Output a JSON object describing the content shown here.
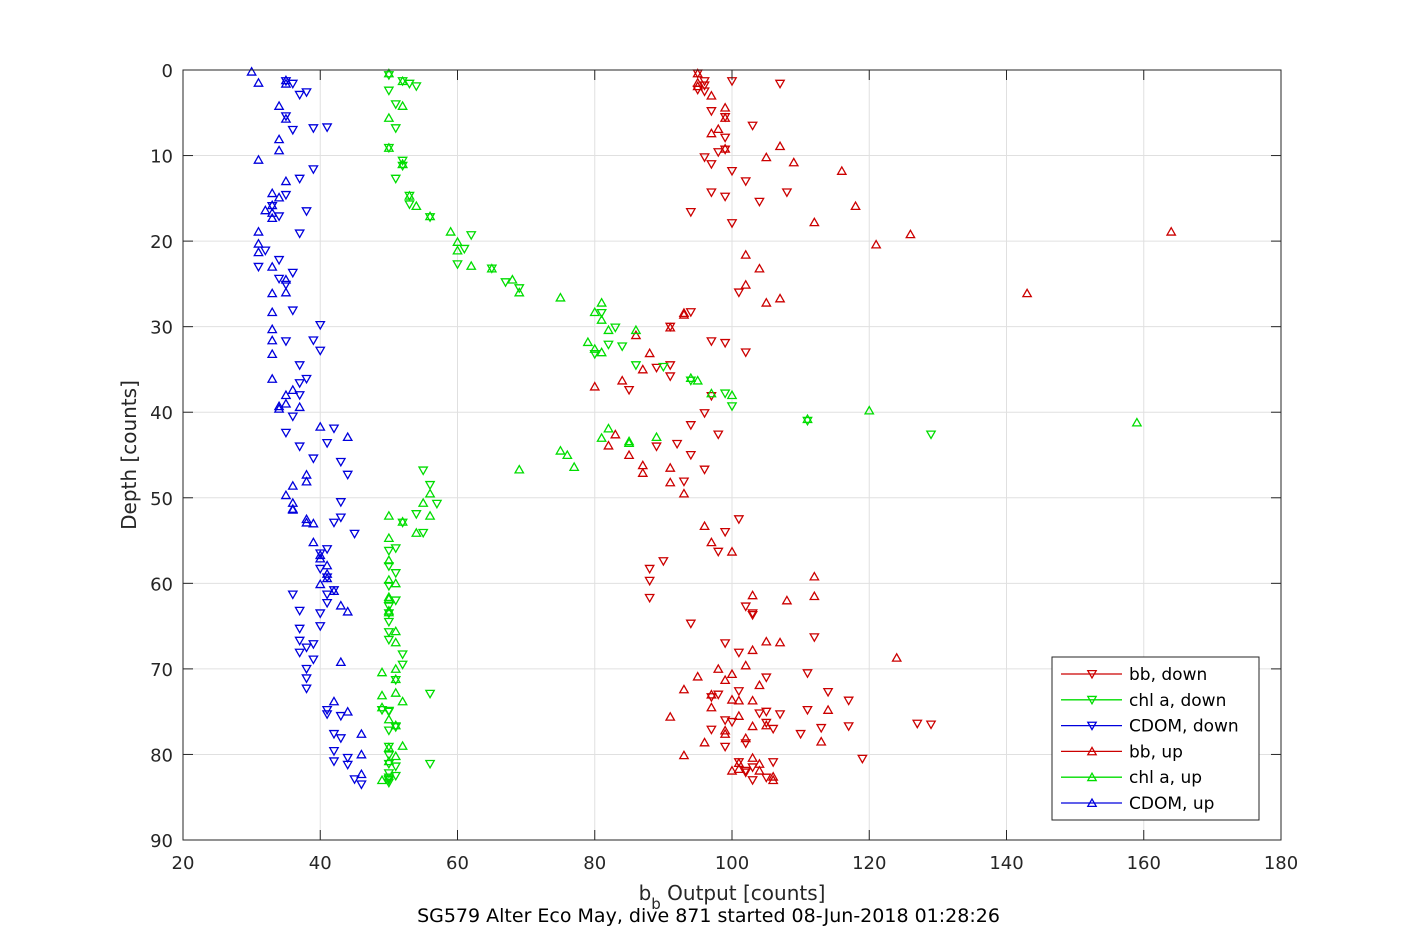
{
  "footer": {
    "text": "SG579 Alter Eco May, dive 871 started 08-Jun-2018 01:28:26"
  },
  "chart_data": {
    "type": "scatter",
    "xlabel_main": "b",
    "xlabel_sub": "b",
    "xlabel_rest": " Output [counts]",
    "ylabel": "Depth [counts]",
    "xlim": [
      20,
      180
    ],
    "ylim": [
      0,
      90
    ],
    "y_reversed": true,
    "xticks": [
      20,
      40,
      60,
      80,
      100,
      120,
      140,
      160,
      180
    ],
    "yticks": [
      0,
      10,
      20,
      30,
      40,
      50,
      60,
      70,
      80,
      90
    ],
    "grid": true,
    "legend_position": "bottom-right",
    "series": [
      {
        "name": "bb, down",
        "color": "#cc0000",
        "marker": "triangle-down",
        "x": [
          95,
          96,
          96,
          107,
          100,
          95,
          96,
          99,
          97,
          103,
          99,
          99,
          96,
          98,
          97,
          100,
          108,
          102,
          97,
          94,
          104,
          100,
          99,
          94,
          101,
          91,
          97,
          99,
          102,
          91,
          89,
          91,
          85,
          97,
          96,
          94,
          98,
          92,
          89,
          94,
          96,
          93,
          101,
          99,
          98,
          88,
          90,
          88,
          88,
          102,
          103,
          94,
          103,
          112,
          101,
          111,
          99,
          105,
          98,
          117,
          104,
          114,
          100,
          97,
          99,
          113,
          99,
          110,
          105,
          107,
          119,
          102,
          102,
          103,
          105,
          106,
          103,
          102,
          101,
          101,
          97,
          105,
          111,
          106,
          117,
          129,
          127
        ],
        "y": [
          0.4,
          1.3,
          1.8,
          1.6,
          1.3,
          2.3,
          2.5,
          5.5,
          4.8,
          6.5,
          7.9,
          9.3,
          10.2,
          9.6,
          11.0,
          11.8,
          14.3,
          13.0,
          14.3,
          16.6,
          15.4,
          17.9,
          14.8,
          28.3,
          26.0,
          30.0,
          31.7,
          31.9,
          33.0,
          34.5,
          34.8,
          35.8,
          37.4,
          38.1,
          40.1,
          41.5,
          42.6,
          43.7,
          44.0,
          45.0,
          46.7,
          48.1,
          52.5,
          54.0,
          56.3,
          58.3,
          57.4,
          59.7,
          61.7,
          62.7,
          63.7,
          64.7,
          63.5,
          66.3,
          68.1,
          70.5,
          67.0,
          71.0,
          73.0,
          73.7,
          75.2,
          72.7,
          76.2,
          77.1,
          76.0,
          76.9,
          79.1,
          77.6,
          76.3,
          75.3,
          80.5,
          81.9,
          82.1,
          83.0,
          82.7,
          80.9,
          81.5,
          78.7,
          80.9,
          72.6,
          73.3,
          75.0,
          74.8,
          77.0,
          76.7,
          76.5,
          76.4
        ]
      },
      {
        "name": "chl a, down",
        "color": "#00dd00",
        "marker": "triangle-down",
        "x": [
          50,
          52,
          53,
          54,
          50,
          51,
          51,
          50,
          52,
          52,
          51,
          53,
          53,
          56,
          62,
          61,
          60,
          65,
          67,
          69,
          81,
          83,
          84,
          82,
          80,
          86,
          90,
          94,
          99,
          100,
          129,
          111,
          55,
          56,
          57,
          54,
          52,
          55,
          51,
          50,
          50,
          51,
          50,
          51,
          50,
          50,
          50,
          50,
          50,
          56,
          50,
          49,
          51,
          50,
          50,
          50,
          50,
          51,
          51,
          56,
          50,
          50,
          50,
          50,
          50,
          50,
          51,
          50,
          51,
          52,
          52
        ],
        "y": [
          0.6,
          1.3,
          1.6,
          1.9,
          2.4,
          4.0,
          6.8,
          9.1,
          10.6,
          11.2,
          12.7,
          14.7,
          15.7,
          17.2,
          19.3,
          20.9,
          22.7,
          23.2,
          24.8,
          25.5,
          28.4,
          30.1,
          32.3,
          32.1,
          33.2,
          34.5,
          34.7,
          36.3,
          37.8,
          39.3,
          42.6,
          41.0,
          46.8,
          48.5,
          50.7,
          51.9,
          52.9,
          54.1,
          55.9,
          56.2,
          58.0,
          58.8,
          60.3,
          62.0,
          62.7,
          63.5,
          64.5,
          65.7,
          66.6,
          72.9,
          74.9,
          74.8,
          76.7,
          77.2,
          79.1,
          80.1,
          81.1,
          81.4,
          82.5,
          81.1,
          82.7,
          82.9,
          83.3,
          83.0,
          82.2,
          82.9,
          76.8,
          75.0,
          71.3,
          68.3,
          69.5
        ]
      },
      {
        "name": "CDOM, down",
        "color": "#0000dd",
        "marker": "triangle-down",
        "x": [
          35,
          36,
          38,
          37,
          39,
          41,
          35,
          36,
          39,
          37,
          35,
          33,
          34,
          38,
          37,
          34,
          32,
          31,
          34,
          36,
          35,
          36,
          35,
          37,
          37,
          40,
          39,
          40,
          38,
          37,
          36,
          35,
          37,
          42,
          41,
          39,
          43,
          44,
          43,
          43,
          42,
          45,
          41,
          40,
          41,
          40,
          41,
          42,
          41,
          40,
          40,
          36,
          37,
          37,
          37,
          37,
          38,
          38,
          38,
          39,
          39,
          38,
          41,
          41,
          43,
          42,
          43,
          42,
          44,
          42,
          45,
          46,
          44
        ],
        "y": [
          1.3,
          1.6,
          2.6,
          2.9,
          6.8,
          6.7,
          5.4,
          7.0,
          11.6,
          12.7,
          14.6,
          15.9,
          17.1,
          16.5,
          19.1,
          22.2,
          21.1,
          23.0,
          24.4,
          23.7,
          25.1,
          28.1,
          31.7,
          34.5,
          36.6,
          29.8,
          31.6,
          32.8,
          36.1,
          38.0,
          40.5,
          42.4,
          44.0,
          41.9,
          43.6,
          45.4,
          45.8,
          47.3,
          50.5,
          52.3,
          52.9,
          54.2,
          56.0,
          56.5,
          59.3,
          58.3,
          61.3,
          60.8,
          62.3,
          63.5,
          65.0,
          61.3,
          63.2,
          65.3,
          66.7,
          68.1,
          71.1,
          70.0,
          67.5,
          67.1,
          68.9,
          72.3,
          74.8,
          75.3,
          75.5,
          77.6,
          78.1,
          79.6,
          80.4,
          80.8,
          82.9,
          83.5,
          81.2
        ]
      },
      {
        "name": "bb, up",
        "color": "#cc0000",
        "marker": "triangle-up",
        "x": [
          95,
          95,
          95,
          97,
          99,
          99,
          98,
          99,
          97,
          107,
          105,
          109,
          116,
          118,
          112,
          126,
          121,
          164,
          102,
          104,
          102,
          143,
          107,
          105,
          93,
          91,
          93,
          86,
          88,
          87,
          84,
          80,
          83,
          82,
          85,
          87,
          87,
          91,
          91,
          93,
          96,
          97,
          100,
          112,
          112,
          108,
          103,
          107,
          103,
          105,
          102,
          100,
          124,
          101,
          101,
          102,
          96,
          101,
          104,
          114,
          106,
          101,
          106,
          103,
          113,
          100,
          104,
          103,
          105,
          93,
          99,
          99,
          97,
          104,
          100,
          103,
          95,
          91,
          93,
          97,
          99,
          98
        ],
        "y": [
          0.4,
          1.5,
          1.9,
          3.0,
          5.6,
          4.4,
          6.9,
          9.2,
          7.4,
          8.9,
          10.2,
          10.8,
          11.8,
          15.9,
          17.8,
          19.2,
          20.4,
          18.9,
          21.6,
          23.2,
          25.1,
          26.1,
          26.7,
          27.2,
          28.4,
          30.1,
          28.6,
          31.0,
          33.1,
          35.0,
          36.3,
          37.0,
          42.6,
          43.9,
          45.0,
          46.2,
          47.1,
          46.5,
          48.2,
          49.5,
          53.3,
          55.2,
          56.3,
          61.5,
          59.2,
          62.0,
          61.4,
          66.9,
          67.8,
          66.8,
          69.6,
          70.6,
          68.7,
          73.7,
          75.5,
          78.1,
          78.6,
          81.7,
          81.1,
          74.8,
          83.0,
          81.0,
          82.6,
          80.4,
          78.5,
          81.9,
          81.9,
          76.7,
          76.6,
          80.1,
          77.6,
          77.2,
          73.0,
          71.9,
          73.6,
          73.7,
          70.9,
          75.6,
          72.4,
          74.5,
          71.3,
          70.0
        ]
      },
      {
        "name": "chl a, up",
        "color": "#00dd00",
        "marker": "triangle-up",
        "x": [
          50,
          52,
          52,
          52,
          50,
          50,
          52,
          53,
          54,
          56,
          59,
          60,
          62,
          60,
          65,
          68,
          69,
          75,
          81,
          80,
          81,
          82,
          79,
          80,
          81,
          86,
          85,
          89,
          95,
          94,
          97,
          100,
          111,
          120,
          159,
          85,
          81,
          82,
          76,
          77,
          75,
          69,
          55,
          56,
          56,
          54,
          52,
          50,
          50,
          50,
          50,
          50,
          50,
          49,
          51,
          52,
          51,
          51,
          51,
          51,
          50,
          50,
          51,
          51,
          50,
          50,
          49,
          52,
          50,
          51,
          49,
          49
        ],
        "y": [
          0.4,
          1.3,
          4.2,
          11.0,
          5.6,
          9.1,
          11.0,
          14.7,
          15.9,
          17.1,
          18.9,
          20.1,
          22.9,
          21.1,
          23.2,
          24.5,
          26.0,
          26.6,
          27.2,
          28.3,
          29.2,
          30.4,
          31.8,
          32.6,
          33.0,
          30.4,
          43.6,
          42.9,
          36.3,
          36.0,
          37.8,
          38.0,
          40.8,
          39.8,
          41.2,
          43.4,
          43.0,
          41.9,
          45.0,
          46.4,
          44.5,
          46.7,
          50.6,
          49.5,
          52.1,
          54.1,
          52.8,
          52.1,
          54.7,
          57.3,
          59.6,
          61.8,
          63.2,
          70.4,
          71.2,
          73.8,
          72.8,
          70.0,
          66.9,
          65.6,
          63.4,
          61.6,
          60.0,
          80.2,
          80.8,
          79.2,
          83.0,
          79.0,
          75.9,
          76.6,
          74.5,
          73.1
        ]
      },
      {
        "name": "CDOM, up",
        "color": "#0000dd",
        "marker": "triangle-up",
        "x": [
          30,
          31,
          35,
          35,
          34,
          35,
          34,
          34,
          31,
          35,
          33,
          34,
          33,
          33,
          32,
          33,
          31,
          31,
          31,
          33,
          35,
          35,
          33,
          33,
          33,
          33,
          33,
          33,
          36,
          35,
          35,
          34,
          34,
          37,
          40,
          44,
          38,
          38,
          38,
          36,
          36,
          35,
          36,
          36,
          38,
          39,
          39,
          40,
          40,
          41,
          41,
          41,
          40,
          42,
          43,
          44,
          43,
          42,
          44,
          46,
          46,
          46
        ],
        "y": [
          0.2,
          1.5,
          1.6,
          1.2,
          4.2,
          5.7,
          8.1,
          9.4,
          10.5,
          13.0,
          14.4,
          14.9,
          15.8,
          16.7,
          16.4,
          17.3,
          18.9,
          20.3,
          21.3,
          23.0,
          24.5,
          26.0,
          26.1,
          28.3,
          30.3,
          31.6,
          33.2,
          36.1,
          37.4,
          38.0,
          39.0,
          39.3,
          39.6,
          39.4,
          41.7,
          42.9,
          47.3,
          48.1,
          52.9,
          51.4,
          48.6,
          49.7,
          50.6,
          51.3,
          52.5,
          53.0,
          55.2,
          56.7,
          57.1,
          57.9,
          58.9,
          59.4,
          60.1,
          60.9,
          62.6,
          63.3,
          69.2,
          73.8,
          75.0,
          77.6,
          80.0,
          82.3
        ]
      }
    ]
  }
}
